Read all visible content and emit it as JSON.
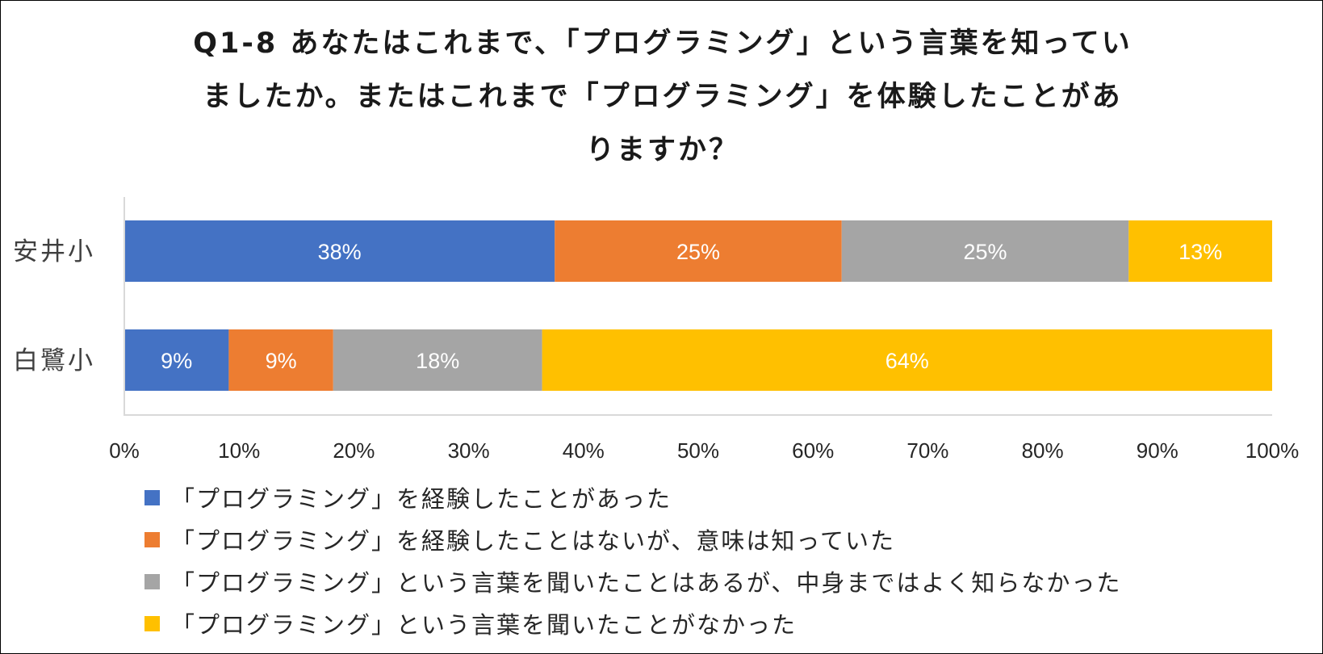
{
  "chart_data": {
    "type": "bar",
    "orientation": "horizontal",
    "stacked": "percent",
    "title_lines": [
      "Q1-8 あなたはこれまで、「プログラミング」という言葉を知ってい",
      "ましたか。またはこれまで「プログラミング」を体験したことがあ",
      "りますか？"
    ],
    "categories": [
      "安井小",
      "白鷺小"
    ],
    "series": [
      {
        "name": "「プログラミング」を経験したことがあった",
        "color": "#4472C4",
        "values": [
          37.5,
          9.1
        ],
        "labels": [
          "38%",
          "9%"
        ]
      },
      {
        "name": "「プログラミング」を経験したことはないが、意味は知っていた",
        "color": "#ED7D31",
        "values": [
          25,
          9.1
        ],
        "labels": [
          "25%",
          "9%"
        ]
      },
      {
        "name": "「プログラミング」という言葉を聞いたことはあるが、中身まではよく知らなかった",
        "color": "#A5A5A5",
        "values": [
          25,
          18.2
        ],
        "labels": [
          "25%",
          "18%"
        ]
      },
      {
        "name": "「プログラミング」という言葉を聞いたことがなかった",
        "color": "#FFC000",
        "values": [
          12.5,
          63.6
        ],
        "labels": [
          "13%",
          "64%"
        ]
      }
    ],
    "xlim": [
      0,
      100
    ],
    "x_ticks": [
      "0%",
      "10%",
      "20%",
      "30%",
      "40%",
      "50%",
      "60%",
      "70%",
      "80%",
      "90%",
      "100%"
    ],
    "legend_position": "bottom",
    "grid": false
  }
}
